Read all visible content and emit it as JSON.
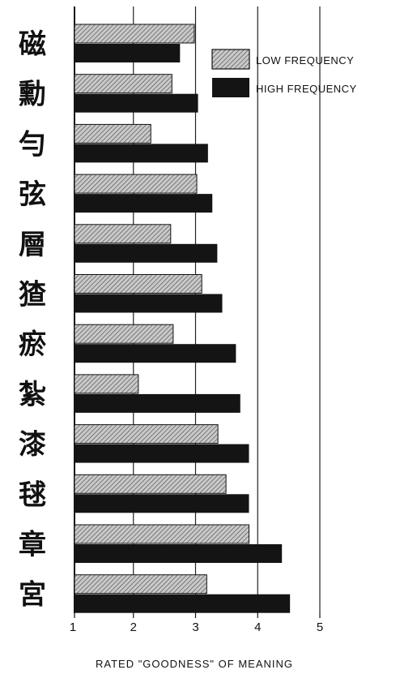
{
  "chart_data": {
    "type": "bar",
    "orientation": "horizontal",
    "categories": [
      "磁",
      "勳",
      "勻",
      "弦",
      "層",
      "猹",
      "瘀",
      "紮",
      "漆",
      "毬",
      "章",
      "宮"
    ],
    "series": [
      {
        "name": "LOW FREQUENCY",
        "values": [
          2.98,
          2.62,
          2.28,
          3.02,
          2.6,
          3.1,
          2.64,
          2.08,
          3.36,
          3.49,
          3.86,
          3.18
        ],
        "pattern": "hatched"
      },
      {
        "name": "HIGH FREQUENCY",
        "values": [
          2.75,
          3.04,
          3.2,
          3.27,
          3.35,
          3.43,
          3.65,
          3.72,
          3.86,
          3.86,
          4.39,
          4.52
        ],
        "pattern": "solid"
      }
    ],
    "xlabel": "RATED \"GOODNESS\" OF MEANING",
    "xlim": [
      1,
      5
    ],
    "xticks": [
      "1",
      "2",
      "3",
      "4",
      "5"
    ],
    "grid": true,
    "legend_position": "top-right",
    "colors": {
      "low": "#9a9a9a",
      "high": "#141414"
    }
  }
}
